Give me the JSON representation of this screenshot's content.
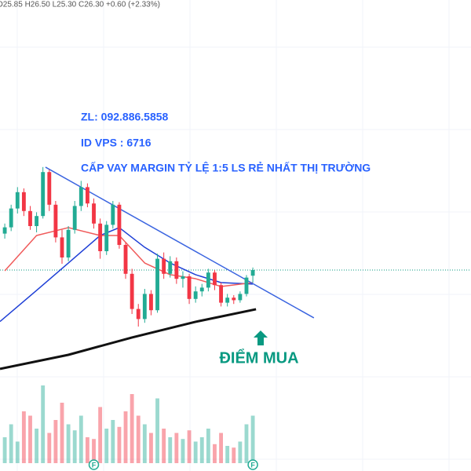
{
  "chart_data": {
    "type": "candlestick",
    "header": "O25.85 H26.50 L25.30 C26.30 +0.60 (+2.33%)",
    "annotations": [
      "ZL: 092.886.5858",
      "ID VPS : 6716",
      "CẤP VAY MARGIN TỶ LỆ 1:5 LS RẺ NHẤT THỊ TRƯỜNG"
    ],
    "signal": "ĐIỂM MUA",
    "ylim": [
      10.3,
      47.8
    ],
    "xlim": [
      -0.75,
      73.3
    ],
    "vlim": [
      0,
      100
    ],
    "grid": true,
    "up_color": "#22ab94",
    "down_color": "#f23645",
    "candles": [
      {
        "open": 29.2,
        "high": 30.0,
        "low": 28.8,
        "close": 29.7
      },
      {
        "open": 29.7,
        "high": 31.5,
        "low": 29.4,
        "close": 31.2
      },
      {
        "open": 31.2,
        "high": 32.9,
        "low": 30.8,
        "close": 32.5
      },
      {
        "open": 32.5,
        "high": 32.8,
        "low": 30.6,
        "close": 31.0
      },
      {
        "open": 31.0,
        "high": 31.4,
        "low": 29.5,
        "close": 29.8
      },
      {
        "open": 29.8,
        "high": 30.9,
        "low": 29.3,
        "close": 30.6
      },
      {
        "open": 30.6,
        "high": 34.5,
        "low": 30.4,
        "close": 34.1
      },
      {
        "open": 34.1,
        "high": 34.3,
        "low": 31.0,
        "close": 31.5
      },
      {
        "open": 31.5,
        "high": 31.8,
        "low": 28.5,
        "close": 28.9
      },
      {
        "open": 28.9,
        "high": 29.5,
        "low": 26.8,
        "close": 27.3
      },
      {
        "open": 27.3,
        "high": 29.8,
        "low": 27.0,
        "close": 29.5
      },
      {
        "open": 29.5,
        "high": 31.8,
        "low": 29.2,
        "close": 31.4
      },
      {
        "open": 31.4,
        "high": 33.4,
        "low": 31.0,
        "close": 32.9
      },
      {
        "open": 32.9,
        "high": 33.2,
        "low": 31.3,
        "close": 31.6
      },
      {
        "open": 31.6,
        "high": 32.0,
        "low": 29.6,
        "close": 30.0
      },
      {
        "open": 30.0,
        "high": 30.4,
        "low": 27.2,
        "close": 27.8
      },
      {
        "open": 27.8,
        "high": 30.2,
        "low": 27.5,
        "close": 29.9
      },
      {
        "open": 29.9,
        "high": 31.8,
        "low": 29.6,
        "close": 31.5
      },
      {
        "open": 31.5,
        "high": 31.7,
        "low": 28.0,
        "close": 28.3
      },
      {
        "open": 28.3,
        "high": 28.5,
        "low": 25.6,
        "close": 26.0
      },
      {
        "open": 26.0,
        "high": 26.4,
        "low": 22.8,
        "close": 23.2
      },
      {
        "open": 23.2,
        "high": 23.6,
        "low": 21.8,
        "close": 22.4
      },
      {
        "open": 22.4,
        "high": 24.8,
        "low": 22.1,
        "close": 24.4
      },
      {
        "open": 24.4,
        "high": 24.7,
        "low": 22.7,
        "close": 23.1
      },
      {
        "open": 23.1,
        "high": 27.6,
        "low": 22.9,
        "close": 27.2
      },
      {
        "open": 27.2,
        "high": 27.7,
        "low": 25.6,
        "close": 26.0
      },
      {
        "open": 26.0,
        "high": 27.4,
        "low": 25.7,
        "close": 27.0
      },
      {
        "open": 27.0,
        "high": 27.3,
        "low": 25.2,
        "close": 25.6
      },
      {
        "open": 25.6,
        "high": 26.2,
        "low": 24.9,
        "close": 25.8
      },
      {
        "open": 25.8,
        "high": 26.0,
        "low": 23.6,
        "close": 24.0
      },
      {
        "open": 24.0,
        "high": 25.0,
        "low": 23.7,
        "close": 24.6
      },
      {
        "open": 24.6,
        "high": 25.2,
        "low": 24.2,
        "close": 24.9
      },
      {
        "open": 24.9,
        "high": 26.4,
        "low": 24.6,
        "close": 26.1
      },
      {
        "open": 26.1,
        "high": 26.3,
        "low": 24.7,
        "close": 25.1
      },
      {
        "open": 25.1,
        "high": 25.3,
        "low": 23.4,
        "close": 23.7
      },
      {
        "open": 23.7,
        "high": 24.4,
        "low": 23.4,
        "close": 24.1
      },
      {
        "open": 24.1,
        "high": 24.3,
        "low": 23.6,
        "close": 23.9
      },
      {
        "open": 23.9,
        "high": 24.6,
        "low": 23.7,
        "close": 24.4
      },
      {
        "open": 24.4,
        "high": 25.9,
        "low": 24.2,
        "close": 25.7
      },
      {
        "open": 25.85,
        "high": 26.5,
        "low": 25.3,
        "close": 26.3
      }
    ],
    "volumes": [
      30,
      45,
      25,
      60,
      55,
      40,
      90,
      35,
      50,
      70,
      45,
      38,
      55,
      30,
      28,
      65,
      40,
      50,
      42,
      60,
      80,
      55,
      45,
      35,
      75,
      40,
      30,
      35,
      28,
      38,
      25,
      30,
      40,
      22,
      35,
      20,
      18,
      25,
      45,
      55
    ],
    "lines": [
      {
        "color": "#1e3fd6",
        "x": [
          -0.75,
          5,
          10,
          15,
          18,
          22,
          26,
          30,
          34,
          39
        ],
        "values": [
          22.2,
          24.68,
          26.86,
          29.05,
          29.68,
          28.11,
          26.86,
          25.93,
          25.3,
          25.18
        ]
      },
      {
        "color": "#f05a5a",
        "x": [
          0,
          5,
          10,
          15,
          18,
          22,
          26,
          30,
          34,
          39
        ],
        "values": [
          26.24,
          29.05,
          29.68,
          29.05,
          29.05,
          26.86,
          25.93,
          25.61,
          24.99,
          25.3
        ]
      },
      {
        "color": "#111111",
        "x": [
          -0.75,
          10,
          20,
          30,
          39.5
        ],
        "values": [
          18.43,
          19.55,
          20.93,
          22.18,
          23.18
        ]
      },
      {
        "color": "#3a64e0",
        "x": [
          6.4,
          48.6
        ],
        "values": [
          34.49,
          22.49
        ]
      }
    ],
    "event_markers": [
      {
        "label": "F",
        "index": 14
      },
      {
        "label": "F",
        "index": 39
      }
    ]
  }
}
